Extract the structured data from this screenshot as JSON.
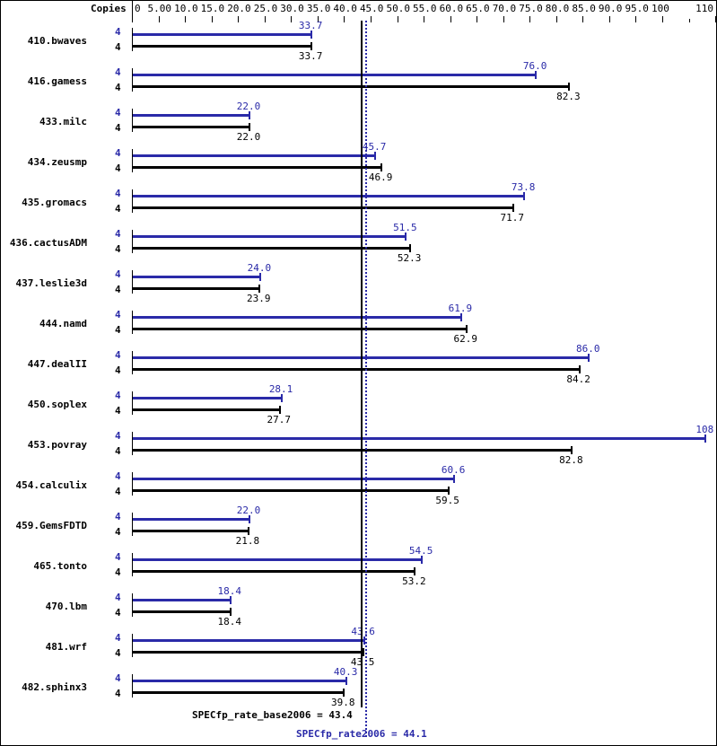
{
  "chart_data": {
    "type": "bar",
    "orientation": "horizontal",
    "title": "",
    "xlabel": "",
    "ylabel": "",
    "header_label": "Copies",
    "xlim": [
      0,
      110
    ],
    "x_ticks": [
      "0",
      "5.00",
      "10.0",
      "15.0",
      "20.0",
      "25.0",
      "30.0",
      "35.0",
      "40.0",
      "45.0",
      "50.0",
      "55.0",
      "60.0",
      "65.0",
      "70.0",
      "75.0",
      "80.0",
      "85.0",
      "90.0",
      "95.0",
      "100",
      "110"
    ],
    "x_tick_values": [
      0,
      5,
      10,
      15,
      20,
      25,
      30,
      35,
      40,
      45,
      50,
      55,
      60,
      65,
      70,
      75,
      80,
      85,
      90,
      95,
      100,
      110
    ],
    "categories": [
      "410.bwaves",
      "416.gamess",
      "433.milc",
      "434.zeusmp",
      "435.gromacs",
      "436.cactusADM",
      "437.leslie3d",
      "444.namd",
      "447.dealII",
      "450.soplex",
      "453.povray",
      "454.calculix",
      "459.GemsFDTD",
      "465.tonto",
      "470.lbm",
      "481.wrf",
      "482.sphinx3"
    ],
    "series": [
      {
        "name": "SPECfp_rate2006 (peak)",
        "color": "#2a2aa8",
        "copies": [
          4,
          4,
          4,
          4,
          4,
          4,
          4,
          4,
          4,
          4,
          4,
          4,
          4,
          4,
          4,
          4,
          4
        ],
        "values": [
          33.7,
          76.0,
          22.0,
          45.7,
          73.8,
          51.5,
          24.0,
          61.9,
          86.0,
          28.1,
          108,
          60.6,
          22.0,
          54.5,
          18.4,
          43.6,
          40.3
        ],
        "labels": [
          "33.7",
          "76.0",
          "22.0",
          "45.7",
          "73.8",
          "51.5",
          "24.0",
          "61.9",
          "86.0",
          "28.1",
          "108",
          "60.6",
          "22.0",
          "54.5",
          "18.4",
          "43.6",
          "40.3"
        ]
      },
      {
        "name": "SPECfp_rate_base2006 (base)",
        "color": "#000000",
        "copies": [
          4,
          4,
          4,
          4,
          4,
          4,
          4,
          4,
          4,
          4,
          4,
          4,
          4,
          4,
          4,
          4,
          4
        ],
        "values": [
          33.7,
          82.3,
          22.0,
          46.9,
          71.7,
          52.3,
          23.9,
          62.9,
          84.2,
          27.7,
          82.8,
          59.5,
          21.8,
          53.2,
          18.4,
          43.5,
          39.8
        ],
        "labels": [
          "33.7",
          "82.3",
          "22.0",
          "46.9",
          "71.7",
          "52.3",
          "23.9",
          "62.9",
          "84.2",
          "27.7",
          "82.8",
          "59.5",
          "21.8",
          "53.2",
          "18.4",
          "43.5",
          "39.8"
        ]
      }
    ],
    "reference_lines": [
      {
        "name": "SPECfp_rate_base2006",
        "value": 43.4,
        "label": "SPECfp_rate_base2006 = 43.4",
        "color": "#000000",
        "style": "solid"
      },
      {
        "name": "SPECfp_rate2006",
        "value": 44.1,
        "label": "SPECfp_rate2006 = 44.1",
        "color": "#2a2aa8",
        "style": "dotted"
      }
    ],
    "grid": false,
    "legend": "none"
  }
}
